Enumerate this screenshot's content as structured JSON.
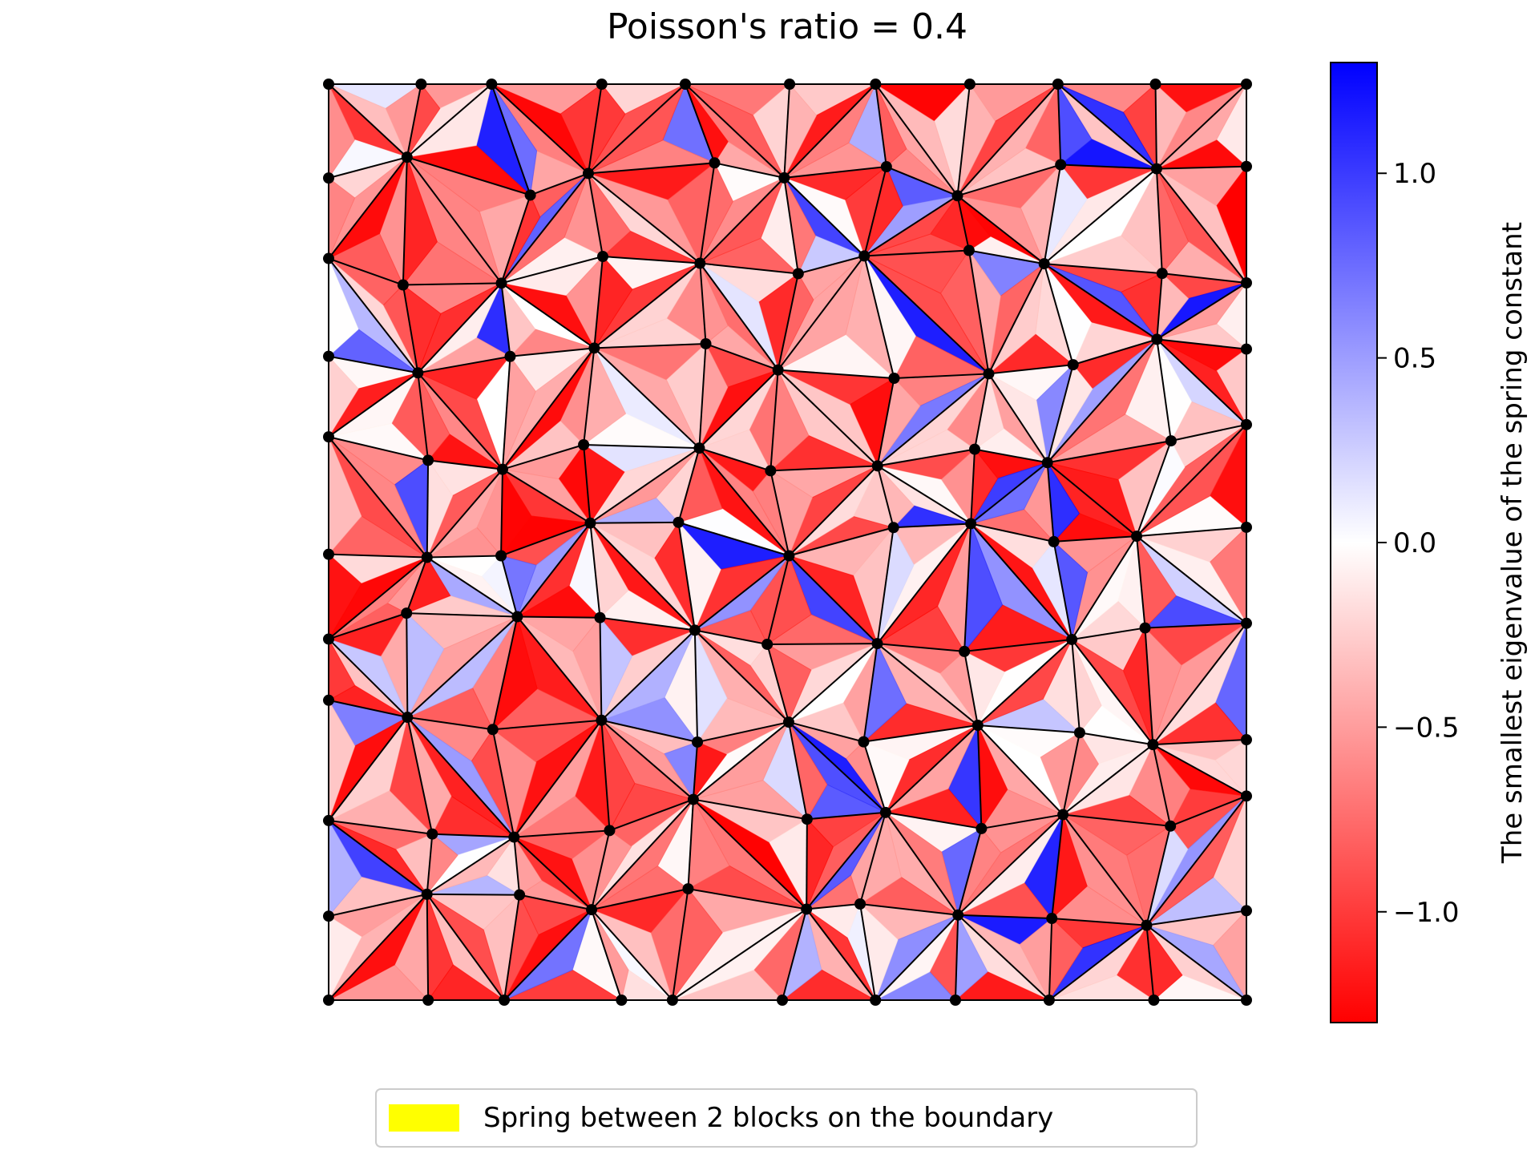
{
  "chart_data": {
    "type": "heatmap",
    "title": "Poisson's ratio = 0.4",
    "grid": false,
    "colorbar": {
      "label": "The smallest eigenvalue of the spring constant",
      "range": [
        -1.3,
        1.3
      ],
      "colormap": "bwr",
      "ticks": [
        1.0,
        0.5,
        0.0,
        -0.5,
        -1.0
      ],
      "tick_labels": [
        "1.0",
        "0.5",
        "0.0",
        "−0.5",
        "−1.0"
      ],
      "colors": {
        "low": "#ff0000",
        "mid": "#ffffff",
        "high": "#0000ff"
      }
    },
    "legend": {
      "placement": "bottom-center",
      "entries": [
        {
          "label": "Spring between 2 blocks on the boundary",
          "color": "#ffff00"
        }
      ]
    },
    "mesh": {
      "columns": 11,
      "rows": 11,
      "seed": 7,
      "boundary_color": "#ffff00",
      "edge_color": "#000000",
      "node_color": "#000000"
    }
  }
}
